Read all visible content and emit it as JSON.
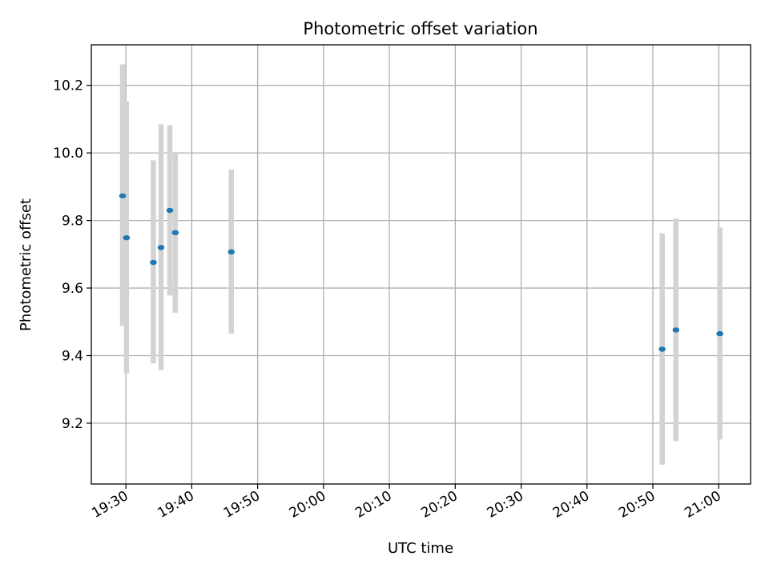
{
  "chart_data": {
    "type": "scatter",
    "title": "Photometric offset variation",
    "xlabel": "UTC time",
    "ylabel": "Photometric offset",
    "x_ticks": [
      "19:30",
      "19:40",
      "19:50",
      "20:00",
      "20:10",
      "20:20",
      "20:30",
      "20:40",
      "20:50",
      "21:00"
    ],
    "x_tick_values": [
      "19:30",
      "19:40",
      "19:50",
      "20:00",
      "20:10",
      "20:20",
      "20:30",
      "20:40",
      "20:50",
      "21:00"
    ],
    "y_ticks": [
      "9.2",
      "9.4",
      "9.6",
      "9.8",
      "10.0",
      "10.2"
    ],
    "y_tick_values": [
      9.2,
      9.4,
      9.6,
      9.8,
      10.0,
      10.2
    ],
    "xlim": [
      "19:24:45",
      "21:04:50"
    ],
    "ylim": [
      9.02,
      10.32
    ],
    "grid": true,
    "series": [
      {
        "points": [
          {
            "x": "19:29:30",
            "y": 9.873,
            "err_low": 9.488,
            "err_high": 10.262
          },
          {
            "x": "19:30:05",
            "y": 9.749,
            "err_low": 9.348,
            "err_high": 10.152
          },
          {
            "x": "19:34:10",
            "y": 9.676,
            "err_low": 9.377,
            "err_high": 9.978
          },
          {
            "x": "19:35:20",
            "y": 9.72,
            "err_low": 9.357,
            "err_high": 10.085
          },
          {
            "x": "19:36:40",
            "y": 9.83,
            "err_low": 9.578,
            "err_high": 10.082
          },
          {
            "x": "19:37:30",
            "y": 9.764,
            "err_low": 9.527,
            "err_high": 10.0
          },
          {
            "x": "19:46:00",
            "y": 9.707,
            "err_low": 9.465,
            "err_high": 9.951
          },
          {
            "x": "20:51:25",
            "y": 9.419,
            "err_low": 9.077,
            "err_high": 9.762
          },
          {
            "x": "20:53:30",
            "y": 9.476,
            "err_low": 9.147,
            "err_high": 9.806
          },
          {
            "x": "21:00:10",
            "y": 9.465,
            "err_low": 9.152,
            "err_high": 9.779
          }
        ]
      }
    ],
    "colors": {
      "point": "#1f77b4",
      "error_bar": "#d3d3d3",
      "grid": "#b0b0b0"
    }
  }
}
